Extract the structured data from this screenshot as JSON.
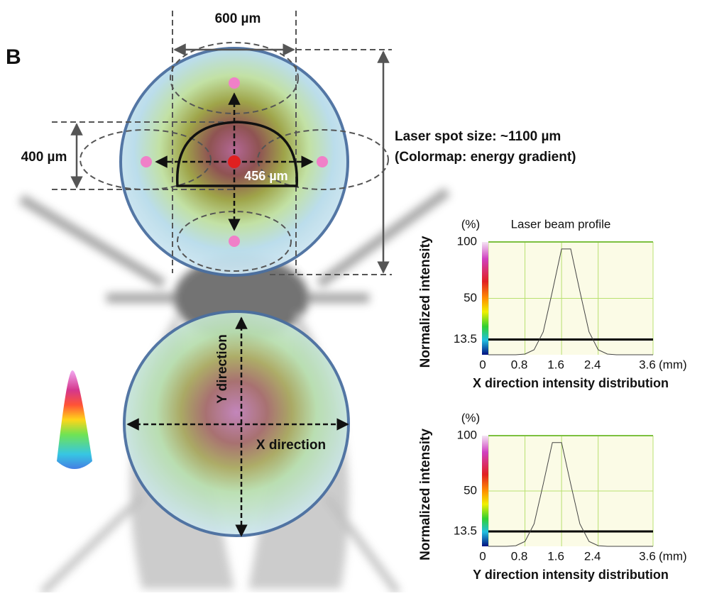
{
  "figure": {
    "panel_label": "B",
    "width_label": "600 µm",
    "height_label": "400 µm",
    "inner_label": "456 µm",
    "spot_size": "Laser spot size: ~1100 µm",
    "colormap_note": "(Colormap: energy gradient)",
    "y_direction": "Y direction",
    "x_direction": "X direction"
  },
  "chart_data": [
    {
      "type": "line",
      "title": "Laser beam profile",
      "y_unit": "(%)",
      "x_unit": "(mm)",
      "ylabel": "Normalized intensity",
      "xlabel": "X direction intensity distribution",
      "x": [
        0,
        0.2,
        0.4,
        0.6,
        0.8,
        1.0,
        1.2,
        1.4,
        1.6,
        1.8,
        2.0,
        2.2,
        2.4,
        2.6,
        2.8,
        3.0,
        3.2,
        3.4,
        3.6
      ],
      "values": [
        0,
        0,
        0,
        0,
        0.6,
        4.4,
        20.3,
        56.3,
        93.8,
        93.8,
        56.3,
        20.3,
        4.4,
        0.6,
        0,
        0,
        0,
        0,
        0
      ],
      "color": "#444444",
      "threshold": 13.5,
      "threshold_color": "#000000",
      "xlim": [
        0,
        3.6
      ],
      "xticks": [
        0,
        0.8,
        1.6,
        2.4,
        3.6
      ],
      "ylim": [
        0,
        100
      ],
      "yticks": [
        13.5,
        50,
        100
      ],
      "grid": true
    },
    {
      "type": "line",
      "y_unit": "(%)",
      "x_unit": "(mm)",
      "ylabel": "Normalized intensity",
      "xlabel": "Y direction intensity distribution",
      "x": [
        0,
        0.2,
        0.4,
        0.6,
        0.8,
        1.0,
        1.2,
        1.4,
        1.6,
        1.8,
        2.0,
        2.2,
        2.4,
        2.6,
        2.8,
        3.0,
        3.2,
        3.4,
        3.6
      ],
      "values": [
        0,
        0,
        0,
        0.6,
        4.4,
        20.3,
        56.3,
        93.8,
        93.8,
        56.3,
        20.3,
        4.4,
        0.6,
        0,
        0,
        0,
        0,
        0,
        0
      ],
      "color": "#444444",
      "threshold": 13.5,
      "threshold_color": "#000000",
      "xlim": [
        0,
        3.6
      ],
      "xticks": [
        0,
        0.8,
        1.6,
        2.4,
        3.6
      ],
      "ylim": [
        0,
        100
      ],
      "yticks": [
        13.5,
        50,
        100
      ],
      "grid": true
    }
  ]
}
